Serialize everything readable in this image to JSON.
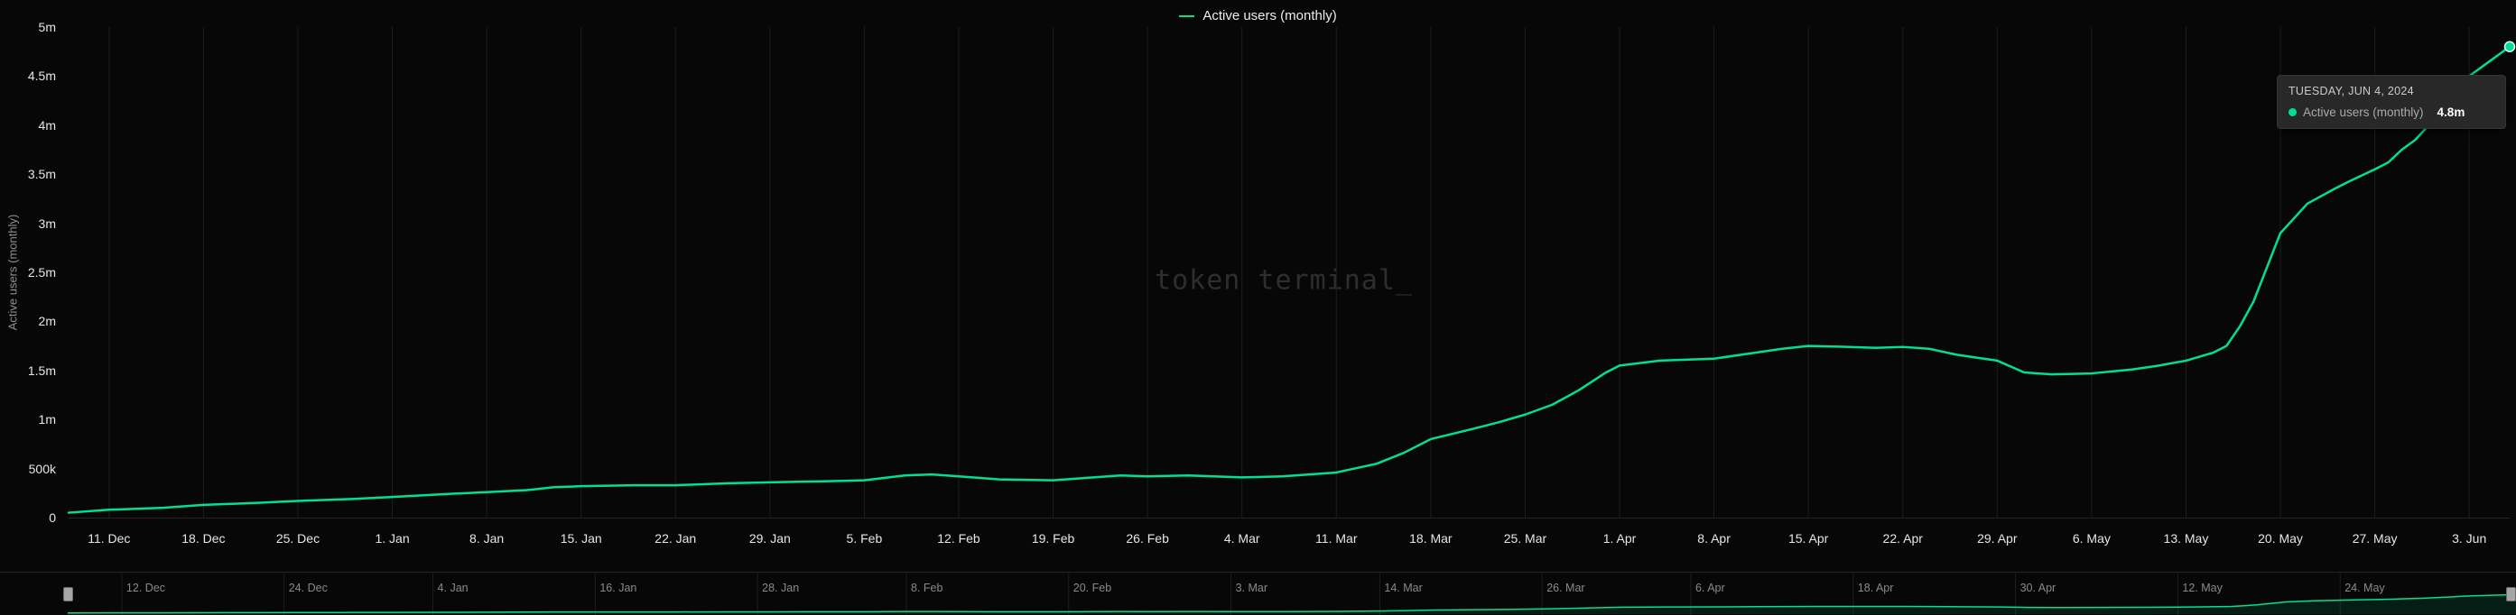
{
  "accent": "#00df9a",
  "colors": {
    "background": "#070707",
    "gridline": "#1d1d1d",
    "axis_line": "#262626",
    "axis_text": "#e6e6e6",
    "muted_text": "#8a8a8a",
    "tooltip_bg": "#282828",
    "watermark_text": "#2e2e2e"
  },
  "legend": {
    "label": "Active users (monthly)"
  },
  "watermark": "token terminal_",
  "y_axis": {
    "title": "Active users (monthly)",
    "ticks": [
      {
        "label": "0",
        "value_m": 0
      },
      {
        "label": "500k",
        "value_m": 0.5
      },
      {
        "label": "1m",
        "value_m": 1
      },
      {
        "label": "1.5m",
        "value_m": 1.5
      },
      {
        "label": "2m",
        "value_m": 2
      },
      {
        "label": "2.5m",
        "value_m": 2.5
      },
      {
        "label": "3m",
        "value_m": 3
      },
      {
        "label": "3.5m",
        "value_m": 3.5
      },
      {
        "label": "4m",
        "value_m": 4
      },
      {
        "label": "4.5m",
        "value_m": 4.5
      },
      {
        "label": "5m",
        "value_m": 5
      }
    ]
  },
  "tooltip": {
    "date": "TUESDAY, JUN 4, 2024",
    "series": "Active users (monthly)",
    "value": "4.8m"
  },
  "chart_data": {
    "type": "line",
    "title": "Active users (monthly)",
    "xlabel": "",
    "ylabel": "Active users (monthly)",
    "ylim": [
      0,
      5000000
    ],
    "grid": "vertical-only",
    "legend_position": "top-center",
    "x_ticks": [
      {
        "label": "11. Dec",
        "day": 3
      },
      {
        "label": "18. Dec",
        "day": 10
      },
      {
        "label": "25. Dec",
        "day": 17
      },
      {
        "label": "1. Jan",
        "day": 24
      },
      {
        "label": "8. Jan",
        "day": 31
      },
      {
        "label": "15. Jan",
        "day": 38
      },
      {
        "label": "22. Jan",
        "day": 45
      },
      {
        "label": "29. Jan",
        "day": 52
      },
      {
        "label": "5. Feb",
        "day": 59
      },
      {
        "label": "12. Feb",
        "day": 66
      },
      {
        "label": "19. Feb",
        "day": 73
      },
      {
        "label": "26. Feb",
        "day": 80
      },
      {
        "label": "4. Mar",
        "day": 87
      },
      {
        "label": "11. Mar",
        "day": 94
      },
      {
        "label": "18. Mar",
        "day": 101
      },
      {
        "label": "25. Mar",
        "day": 108
      },
      {
        "label": "1. Apr",
        "day": 115
      },
      {
        "label": "8. Apr",
        "day": 122
      },
      {
        "label": "15. Apr",
        "day": 129
      },
      {
        "label": "22. Apr",
        "day": 136
      },
      {
        "label": "29. Apr",
        "day": 143
      },
      {
        "label": "6. May",
        "day": 150
      },
      {
        "label": "13. May",
        "day": 157
      },
      {
        "label": "20. May",
        "day": 164
      },
      {
        "label": "27. May",
        "day": 171
      },
      {
        "label": "3. Jun",
        "day": 178
      }
    ],
    "navigator_ticks": [
      {
        "label": "12. Dec",
        "day": 4
      },
      {
        "label": "24. Dec",
        "day": 16
      },
      {
        "label": "4. Jan",
        "day": 27
      },
      {
        "label": "16. Jan",
        "day": 39
      },
      {
        "label": "28. Jan",
        "day": 51
      },
      {
        "label": "8. Feb",
        "day": 62
      },
      {
        "label": "20. Feb",
        "day": 74
      },
      {
        "label": "3. Mar",
        "day": 86
      },
      {
        "label": "14. Mar",
        "day": 97
      },
      {
        "label": "26. Mar",
        "day": 109
      },
      {
        "label": "6. Apr",
        "day": 120
      },
      {
        "label": "18. Apr",
        "day": 132
      },
      {
        "label": "30. Apr",
        "day": 144
      },
      {
        "label": "12. May",
        "day": 156
      },
      {
        "label": "24. May",
        "day": 168
      }
    ],
    "series": [
      {
        "name": "Active users (monthly)",
        "unit": "millions",
        "points_day_valueM": [
          [
            0,
            0.05
          ],
          [
            3,
            0.08
          ],
          [
            7,
            0.1
          ],
          [
            10,
            0.13
          ],
          [
            14,
            0.15
          ],
          [
            17,
            0.17
          ],
          [
            21,
            0.19
          ],
          [
            24,
            0.21
          ],
          [
            28,
            0.24
          ],
          [
            31,
            0.26
          ],
          [
            34,
            0.28
          ],
          [
            36,
            0.31
          ],
          [
            38,
            0.32
          ],
          [
            42,
            0.33
          ],
          [
            45,
            0.33
          ],
          [
            49,
            0.35
          ],
          [
            52,
            0.36
          ],
          [
            56,
            0.37
          ],
          [
            59,
            0.38
          ],
          [
            62,
            0.43
          ],
          [
            64,
            0.44
          ],
          [
            66,
            0.42
          ],
          [
            69,
            0.39
          ],
          [
            73,
            0.38
          ],
          [
            76,
            0.41
          ],
          [
            78,
            0.43
          ],
          [
            80,
            0.42
          ],
          [
            83,
            0.43
          ],
          [
            87,
            0.41
          ],
          [
            90,
            0.42
          ],
          [
            94,
            0.46
          ],
          [
            97,
            0.55
          ],
          [
            99,
            0.66
          ],
          [
            101,
            0.8
          ],
          [
            104,
            0.9
          ],
          [
            106,
            0.97
          ],
          [
            108,
            1.05
          ],
          [
            110,
            1.15
          ],
          [
            112,
            1.3
          ],
          [
            114,
            1.48
          ],
          [
            115,
            1.55
          ],
          [
            118,
            1.6
          ],
          [
            122,
            1.62
          ],
          [
            125,
            1.68
          ],
          [
            127,
            1.72
          ],
          [
            129,
            1.75
          ],
          [
            132,
            1.74
          ],
          [
            134,
            1.73
          ],
          [
            136,
            1.74
          ],
          [
            138,
            1.72
          ],
          [
            140,
            1.66
          ],
          [
            142,
            1.62
          ],
          [
            143,
            1.6
          ],
          [
            145,
            1.48
          ],
          [
            147,
            1.46
          ],
          [
            150,
            1.47
          ],
          [
            153,
            1.51
          ],
          [
            155,
            1.55
          ],
          [
            157,
            1.6
          ],
          [
            159,
            1.68
          ],
          [
            160,
            1.75
          ],
          [
            161,
            1.95
          ],
          [
            162,
            2.2
          ],
          [
            163,
            2.55
          ],
          [
            164,
            2.9
          ],
          [
            165,
            3.05
          ],
          [
            166,
            3.2
          ],
          [
            168,
            3.35
          ],
          [
            169,
            3.42
          ],
          [
            171,
            3.55
          ],
          [
            172,
            3.62
          ],
          [
            173,
            3.75
          ],
          [
            174,
            3.85
          ],
          [
            175,
            4.0
          ],
          [
            176,
            4.15
          ],
          [
            177,
            4.35
          ],
          [
            178,
            4.5
          ],
          [
            179,
            4.6
          ],
          [
            180,
            4.7
          ],
          [
            181,
            4.8
          ]
        ]
      }
    ]
  }
}
